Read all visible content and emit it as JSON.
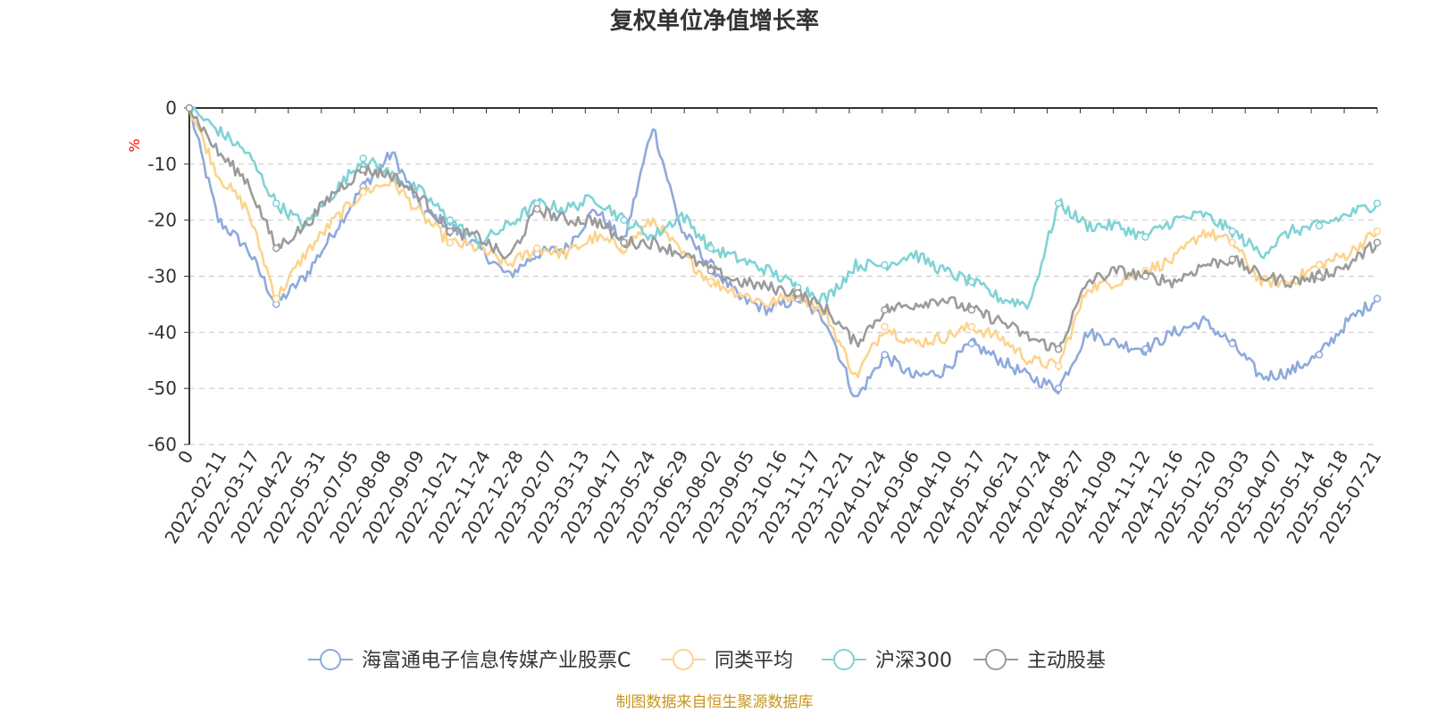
{
  "chart_data": {
    "type": "line",
    "title": "复权单位净值增长率",
    "ylabel": "%",
    "ylim": [
      -60,
      0
    ],
    "yticks": [
      0,
      -10,
      -20,
      -30,
      -40,
      -50,
      -60
    ],
    "grid": true,
    "legend_position": "bottom",
    "x_tick_labels": [
      "0",
      "2022-02-11",
      "2022-03-17",
      "2022-04-22",
      "2022-05-31",
      "2022-07-05",
      "2022-08-08",
      "2022-09-09",
      "2022-10-21",
      "2022-11-24",
      "2022-12-28",
      "2023-02-07",
      "2023-03-13",
      "2023-04-17",
      "2023-05-24",
      "2023-06-29",
      "2023-08-02",
      "2023-09-05",
      "2023-10-16",
      "2023-11-17",
      "2023-12-21",
      "2024-01-24",
      "2024-03-06",
      "2024-04-10",
      "2024-05-17",
      "2024-06-21",
      "2024-07-24",
      "2024-08-27",
      "2024-10-09",
      "2024-11-12",
      "2024-12-16",
      "2025-01-20",
      "2025-03-03",
      "2025-04-07",
      "2025-05-14",
      "2025-06-18",
      "2025-07-21"
    ],
    "series": [
      {
        "name": "海富通电子信息传媒产业股票C",
        "color": "#8eaadc",
        "values": [
          0,
          -20,
          -25,
          -35,
          -30,
          -22,
          -14,
          -8,
          -18,
          -21,
          -25,
          -30,
          -26,
          -25,
          -18,
          -24,
          -3,
          -22,
          -28,
          -34,
          -36,
          -34,
          -38,
          -52,
          -44,
          -48,
          -47,
          -42,
          -45,
          -48,
          -50,
          -40,
          -42,
          -43,
          -40,
          -38,
          -42,
          -48,
          -47,
          -44,
          -38,
          -34
        ]
      },
      {
        "name": "同类平均",
        "color": "#fdd38d",
        "values": [
          0,
          -12,
          -18,
          -34,
          -26,
          -20,
          -15,
          -13,
          -19,
          -24,
          -25,
          -28,
          -25,
          -26,
          -23,
          -25,
          -20,
          -26,
          -31,
          -33,
          -35,
          -33,
          -37,
          -48,
          -39,
          -42,
          -41,
          -39,
          -41,
          -45,
          -46,
          -32,
          -31,
          -29,
          -27,
          -22,
          -24,
          -31,
          -31,
          -28,
          -26,
          -22
        ]
      },
      {
        "name": "沪深300",
        "color": "#7fd3d4",
        "values": [
          0,
          -4,
          -8,
          -17,
          -21,
          -15,
          -9,
          -12,
          -15,
          -20,
          -24,
          -21,
          -17,
          -18,
          -16,
          -20,
          -23,
          -19,
          -25,
          -27,
          -29,
          -32,
          -34,
          -28,
          -28,
          -26,
          -29,
          -31,
          -34,
          -35,
          -17,
          -21,
          -21,
          -23,
          -20,
          -19,
          -22,
          -26,
          -22,
          -21,
          -19,
          -17
        ]
      },
      {
        "name": "主动股基",
        "color": "#9b9b9b",
        "values": [
          0,
          -8,
          -13,
          -25,
          -21,
          -15,
          -11,
          -12,
          -16,
          -22,
          -23,
          -27,
          -18,
          -20,
          -20,
          -24,
          -24,
          -26,
          -29,
          -31,
          -32,
          -33,
          -36,
          -42,
          -36,
          -35,
          -34,
          -36,
          -38,
          -41,
          -43,
          -31,
          -29,
          -30,
          -31,
          -28,
          -27,
          -30,
          -31,
          -30,
          -28,
          -24
        ]
      }
    ]
  },
  "legend": {
    "items": [
      "海富通电子信息传媒产业股票C",
      "同类平均",
      "沪深300",
      "主动股基"
    ]
  },
  "footer": {
    "source": "制图数据来自恒生聚源数据库"
  }
}
